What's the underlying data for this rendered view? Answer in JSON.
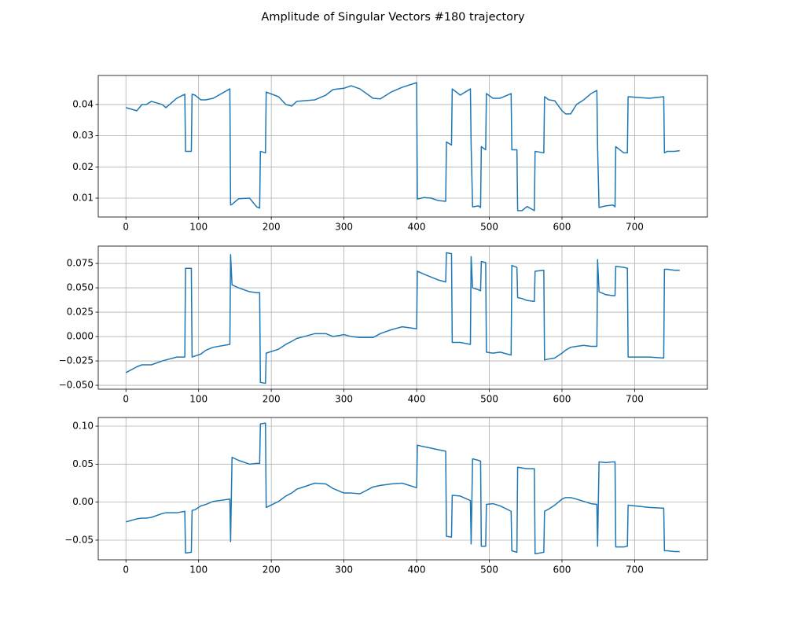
{
  "title": "Amplitude of Singular Vectors #180 trajectory",
  "chart_data": [
    {
      "type": "line",
      "grid": true,
      "xlim": [
        -38.1,
        800.1
      ],
      "ylim": [
        0.00395,
        0.0493
      ],
      "xticks": [
        0,
        100,
        200,
        300,
        400,
        500,
        600,
        700
      ],
      "yticks": [
        0.01,
        0.02,
        0.03,
        0.04
      ],
      "x": [
        0,
        15,
        22,
        28,
        35,
        50,
        55,
        70,
        81,
        82,
        90,
        91,
        95,
        103,
        110,
        120,
        143,
        144,
        146,
        155,
        170,
        180,
        184,
        185,
        192,
        193,
        210,
        220,
        228,
        235,
        260,
        275,
        285,
        300,
        310,
        322,
        340,
        350,
        365,
        380,
        400,
        401,
        410,
        420,
        430,
        440,
        441,
        448,
        449,
        460,
        474,
        475,
        477,
        485,
        488,
        489,
        495,
        496,
        505,
        515,
        530,
        531,
        538,
        539,
        545,
        552,
        562,
        563,
        575,
        576,
        582,
        590,
        600,
        605,
        612,
        620,
        630,
        640,
        648,
        649,
        651,
        660,
        670,
        673,
        674,
        685,
        690,
        691,
        720,
        740,
        741,
        745,
        755,
        762
      ],
      "series": [
        {
          "color": "#1f77b4",
          "values": [
            0.039,
            0.038,
            0.04,
            0.04,
            0.041,
            0.04,
            0.039,
            0.042,
            0.0433,
            0.025,
            0.025,
            0.0433,
            0.043,
            0.0415,
            0.0415,
            0.042,
            0.045,
            0.0078,
            0.008,
            0.0098,
            0.01,
            0.0072,
            0.0068,
            0.025,
            0.0245,
            0.044,
            0.0425,
            0.04,
            0.0395,
            0.041,
            0.0415,
            0.043,
            0.0448,
            0.0452,
            0.046,
            0.045,
            0.042,
            0.0418,
            0.044,
            0.0455,
            0.047,
            0.0097,
            0.0102,
            0.01,
            0.0092,
            0.009,
            0.028,
            0.027,
            0.045,
            0.043,
            0.045,
            0.027,
            0.0072,
            0.0075,
            0.007,
            0.0265,
            0.0255,
            0.0435,
            0.042,
            0.042,
            0.0435,
            0.0255,
            0.0255,
            0.006,
            0.006,
            0.0073,
            0.006,
            0.025,
            0.0245,
            0.0425,
            0.0415,
            0.0412,
            0.038,
            0.037,
            0.037,
            0.04,
            0.0415,
            0.0435,
            0.0445,
            0.0265,
            0.007,
            0.0075,
            0.0078,
            0.0072,
            0.0265,
            0.0245,
            0.0245,
            0.0425,
            0.042,
            0.0425,
            0.0245,
            0.025,
            0.025,
            0.0252
          ]
        }
      ]
    },
    {
      "type": "line",
      "grid": true,
      "xlim": [
        -38.1,
        800.1
      ],
      "ylim": [
        -0.054,
        0.0928
      ],
      "xticks": [
        0,
        100,
        200,
        300,
        400,
        500,
        600,
        700
      ],
      "yticks": [
        {
          "value": -0.05,
          "label": "−0.050"
        },
        {
          "value": -0.025,
          "label": "−0.025"
        },
        {
          "value": 0,
          "label": "0.000"
        },
        {
          "value": 0.025,
          "label": "0.025"
        },
        {
          "value": 0.05,
          "label": "0.050"
        },
        {
          "value": 0.075,
          "label": "0.075"
        }
      ],
      "x": [
        0,
        15,
        22,
        28,
        35,
        50,
        55,
        70,
        81,
        82,
        90,
        91,
        95,
        103,
        110,
        120,
        143,
        144,
        146,
        155,
        170,
        180,
        184,
        185,
        192,
        193,
        210,
        220,
        228,
        235,
        260,
        275,
        285,
        300,
        310,
        322,
        340,
        350,
        365,
        380,
        400,
        401,
        410,
        420,
        430,
        440,
        441,
        448,
        449,
        460,
        474,
        475,
        477,
        485,
        488,
        489,
        495,
        496,
        505,
        515,
        530,
        531,
        538,
        539,
        545,
        552,
        562,
        563,
        575,
        576,
        582,
        590,
        600,
        605,
        612,
        620,
        630,
        640,
        648,
        649,
        651,
        660,
        670,
        673,
        674,
        685,
        690,
        691,
        720,
        740,
        741,
        745,
        755,
        762
      ],
      "series": [
        {
          "color": "#1f77b4",
          "values": [
            -0.037,
            -0.031,
            -0.029,
            -0.029,
            -0.029,
            -0.025,
            -0.024,
            -0.021,
            -0.021,
            0.07,
            0.07,
            -0.021,
            -0.02,
            -0.018,
            -0.014,
            -0.011,
            -0.008,
            0.084,
            0.053,
            0.05,
            0.046,
            0.045,
            0.045,
            -0.047,
            -0.048,
            -0.017,
            -0.013,
            -0.008,
            -0.005,
            -0.002,
            0.003,
            0.003,
            0.0,
            0.002,
            0.0,
            -0.001,
            -0.001,
            0.003,
            0.007,
            0.01,
            0.008,
            0.067,
            0.064,
            0.061,
            0.058,
            0.056,
            0.086,
            0.085,
            -0.006,
            -0.006,
            -0.008,
            0.082,
            0.05,
            0.048,
            0.047,
            0.077,
            0.076,
            -0.016,
            -0.017,
            -0.016,
            -0.019,
            0.073,
            0.071,
            0.04,
            0.039,
            0.037,
            0.036,
            0.067,
            0.068,
            -0.024,
            -0.023,
            -0.022,
            -0.017,
            -0.014,
            -0.011,
            -0.01,
            -0.009,
            -0.01,
            -0.01,
            0.079,
            0.046,
            0.043,
            0.042,
            0.042,
            0.072,
            0.071,
            0.07,
            -0.021,
            -0.021,
            -0.022,
            0.069,
            0.069,
            0.068,
            0.068
          ]
        }
      ]
    },
    {
      "type": "line",
      "grid": true,
      "xlim": [
        -38.1,
        800.1
      ],
      "ylim": [
        -0.0759,
        0.1114
      ],
      "xticks": [
        0,
        100,
        200,
        300,
        400,
        500,
        600,
        700
      ],
      "yticks": [
        {
          "value": -0.05,
          "label": "−0.05"
        },
        {
          "value": 0,
          "label": "0.00"
        },
        {
          "value": 0.05,
          "label": "0.05"
        },
        {
          "value": 0.1,
          "label": "0.10"
        }
      ],
      "x": [
        0,
        15,
        22,
        28,
        35,
        50,
        55,
        70,
        81,
        82,
        90,
        91,
        95,
        103,
        110,
        120,
        143,
        144,
        146,
        155,
        170,
        180,
        184,
        185,
        192,
        193,
        210,
        220,
        228,
        235,
        260,
        275,
        285,
        300,
        310,
        322,
        340,
        350,
        365,
        380,
        400,
        401,
        410,
        420,
        430,
        440,
        441,
        448,
        449,
        460,
        474,
        475,
        477,
        485,
        488,
        489,
        495,
        496,
        505,
        515,
        530,
        531,
        538,
        539,
        545,
        552,
        562,
        563,
        575,
        576,
        582,
        590,
        600,
        605,
        612,
        620,
        630,
        640,
        648,
        649,
        651,
        660,
        670,
        673,
        674,
        685,
        690,
        691,
        720,
        740,
        741,
        745,
        755,
        762
      ],
      "series": [
        {
          "color": "#1f77b4",
          "values": [
            -0.026,
            -0.022,
            -0.021,
            -0.021,
            -0.02,
            -0.015,
            -0.014,
            -0.014,
            -0.012,
            -0.067,
            -0.066,
            -0.011,
            -0.01,
            -0.005,
            -0.003,
            0.001,
            0.004,
            -0.052,
            0.059,
            0.055,
            0.05,
            0.051,
            0.051,
            0.103,
            0.104,
            -0.007,
            0.001,
            0.008,
            0.012,
            0.017,
            0.025,
            0.024,
            0.018,
            0.012,
            0.012,
            0.011,
            0.02,
            0.022,
            0.024,
            0.025,
            0.019,
            0.075,
            0.073,
            0.071,
            0.069,
            0.067,
            -0.045,
            -0.046,
            0.009,
            0.008,
            0.002,
            -0.055,
            0.057,
            0.055,
            0.054,
            -0.058,
            -0.058,
            -0.003,
            -0.002,
            -0.005,
            -0.012,
            -0.064,
            -0.066,
            0.046,
            0.045,
            0.044,
            0.044,
            -0.068,
            -0.066,
            -0.012,
            -0.009,
            -0.004,
            0.004,
            0.006,
            0.006,
            0.004,
            0.001,
            -0.002,
            -0.003,
            -0.058,
            0.053,
            0.052,
            0.053,
            0.053,
            -0.059,
            -0.059,
            -0.058,
            -0.004,
            -0.007,
            -0.008,
            -0.064,
            -0.064,
            -0.065,
            -0.065
          ]
        }
      ]
    }
  ]
}
